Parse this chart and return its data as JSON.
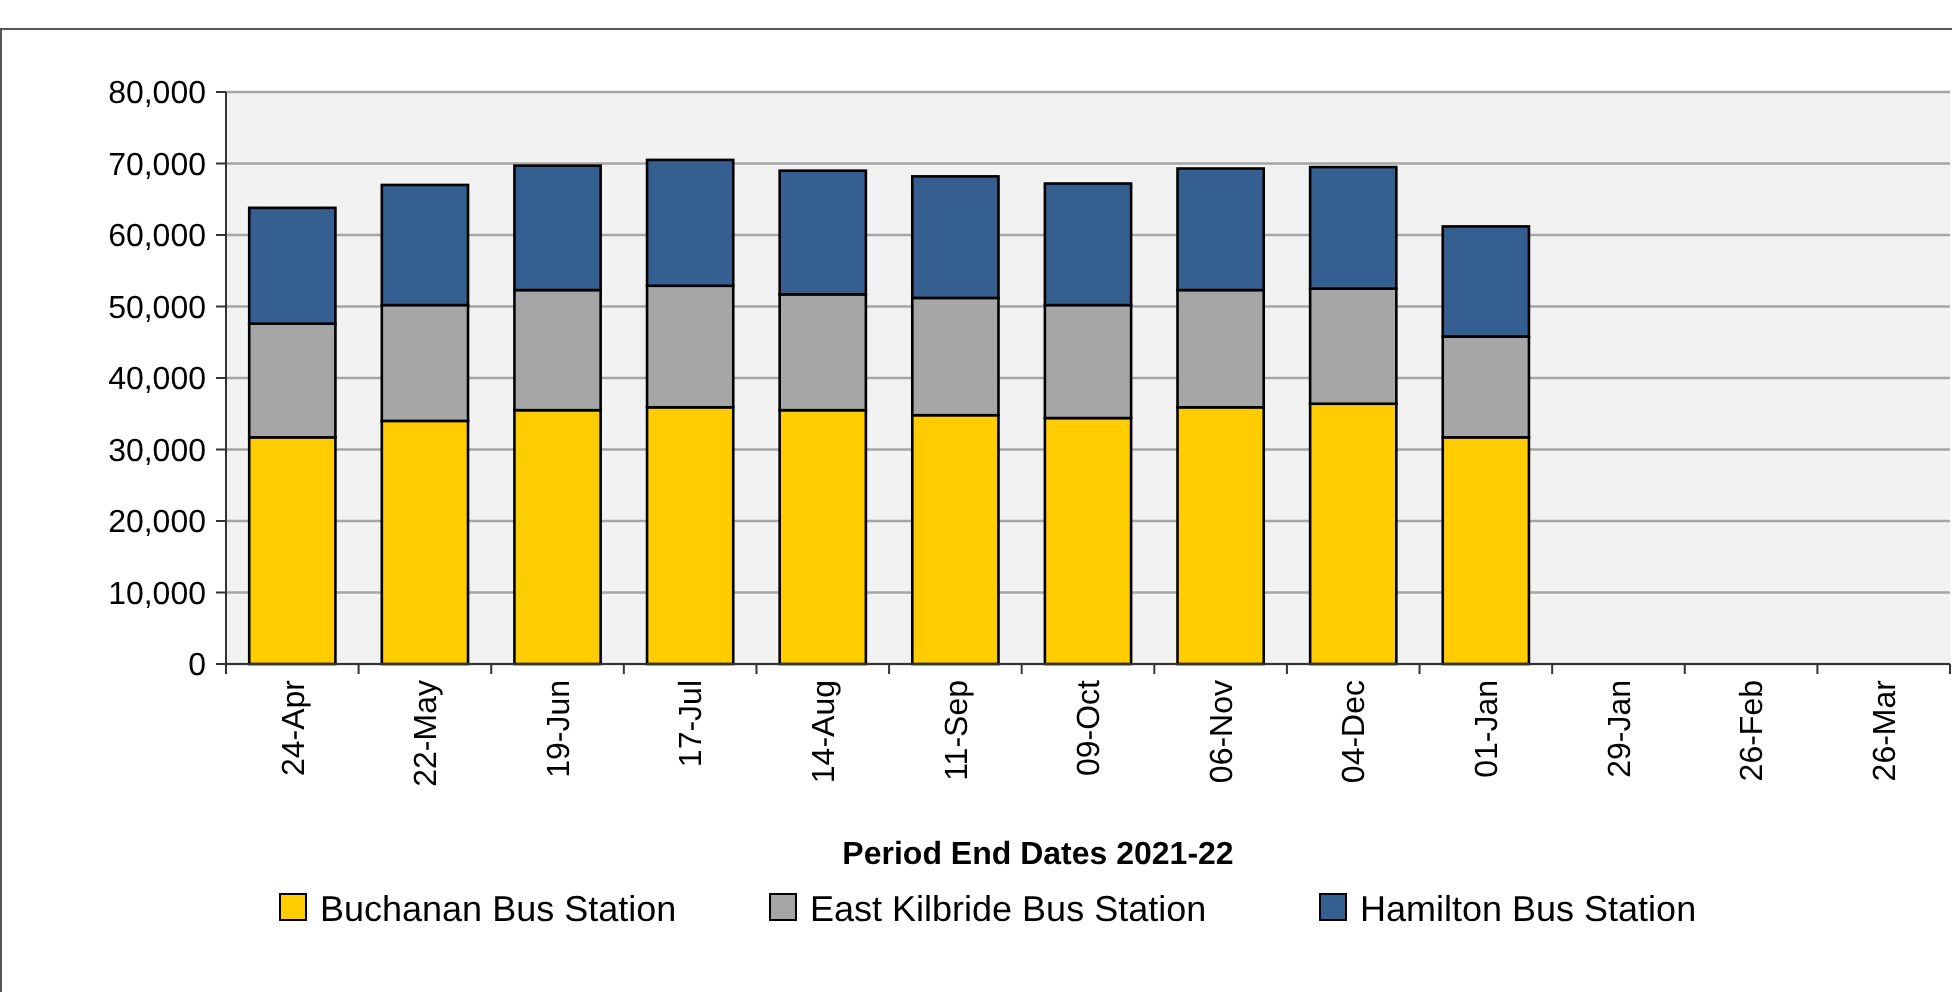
{
  "chart_data": {
    "type": "bar",
    "stacked": true,
    "xlabel": "Period End Dates 2021-22",
    "categories": [
      "24-Apr",
      "22-May",
      "19-Jun",
      "17-Jul",
      "14-Aug",
      "11-Sep",
      "09-Oct",
      "06-Nov",
      "04-Dec",
      "01-Jan",
      "29-Jan",
      "26-Feb",
      "26-Mar"
    ],
    "series": [
      {
        "name": "Buchanan Bus Station",
        "color": "#ffcc00",
        "values": [
          31700,
          34000,
          35500,
          35900,
          35500,
          34800,
          34400,
          35900,
          36400,
          31700,
          null,
          null,
          null
        ]
      },
      {
        "name": "East Kilbride Bus Station",
        "color": "#a6a6a6",
        "values": [
          15900,
          16200,
          16800,
          17000,
          16200,
          16400,
          15800,
          16400,
          16100,
          14100,
          null,
          null,
          null
        ]
      },
      {
        "name": "Hamilton Bus Station",
        "color": "#355f91",
        "values": [
          16200,
          16800,
          17400,
          17600,
          17300,
          17000,
          17000,
          17000,
          17000,
          15400,
          null,
          null,
          null
        ]
      }
    ],
    "ylim": [
      0,
      80000
    ],
    "yticks": [
      {
        "value": 0,
        "label": "0"
      },
      {
        "value": 10000,
        "label": "10,000"
      },
      {
        "value": 20000,
        "label": "20,000"
      },
      {
        "value": 30000,
        "label": "30,000"
      },
      {
        "value": 40000,
        "label": "40,000"
      },
      {
        "value": 50000,
        "label": "50,000"
      },
      {
        "value": 60000,
        "label": "60,000"
      },
      {
        "value": 70000,
        "label": "70,000"
      },
      {
        "value": 80000,
        "label": "80,000"
      }
    ],
    "grid": "y",
    "legend": "bottom"
  }
}
